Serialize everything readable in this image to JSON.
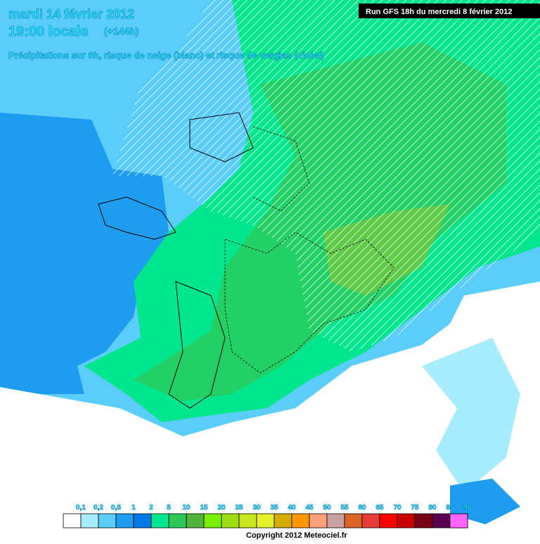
{
  "header": {
    "date": "mardi 14 février 2012",
    "time": "19:00 locale",
    "lead": "(+144h)",
    "subtitle": "Précipitations sur 6h, risque de neige (blanc) et risque de verglas (violet)",
    "run": "Run GFS 18h du mercredi 8 février 2012"
  },
  "legend": {
    "items": [
      {
        "label": "0,1",
        "color": "#ffffff"
      },
      {
        "label": "0,2",
        "color": "#a8ecff"
      },
      {
        "label": "0,5",
        "color": "#5acdfa"
      },
      {
        "label": "1",
        "color": "#1e9cf0"
      },
      {
        "label": "2",
        "color": "#0078e6"
      },
      {
        "label": "5",
        "color": "#00e68c"
      },
      {
        "label": "10",
        "color": "#2dc85a"
      },
      {
        "label": "15",
        "color": "#50b43c"
      },
      {
        "label": "20",
        "color": "#78f000"
      },
      {
        "label": "25",
        "color": "#a0dc14"
      },
      {
        "label": "30",
        "color": "#c8e61e"
      },
      {
        "label": "35",
        "color": "#e6f028"
      },
      {
        "label": "40",
        "color": "#d2aa00"
      },
      {
        "label": "45",
        "color": "#ff9600"
      },
      {
        "label": "50",
        "color": "#ffa078"
      },
      {
        "label": "55",
        "color": "#c8a0a0"
      },
      {
        "label": "60",
        "color": "#dc6428"
      },
      {
        "label": "65",
        "color": "#e63c3c"
      },
      {
        "label": "70",
        "color": "#ff0000"
      },
      {
        "label": "75",
        "color": "#c80000"
      },
      {
        "label": "80",
        "color": "#780014"
      },
      {
        "label": "85",
        "color": "#5a0050"
      },
      {
        "label": "90",
        "color": "#8c5adc"
      }
    ],
    "end_color": "#ff64ff"
  },
  "footer": {
    "copyright": "Copyright 2012 Meteociel.fr"
  }
}
